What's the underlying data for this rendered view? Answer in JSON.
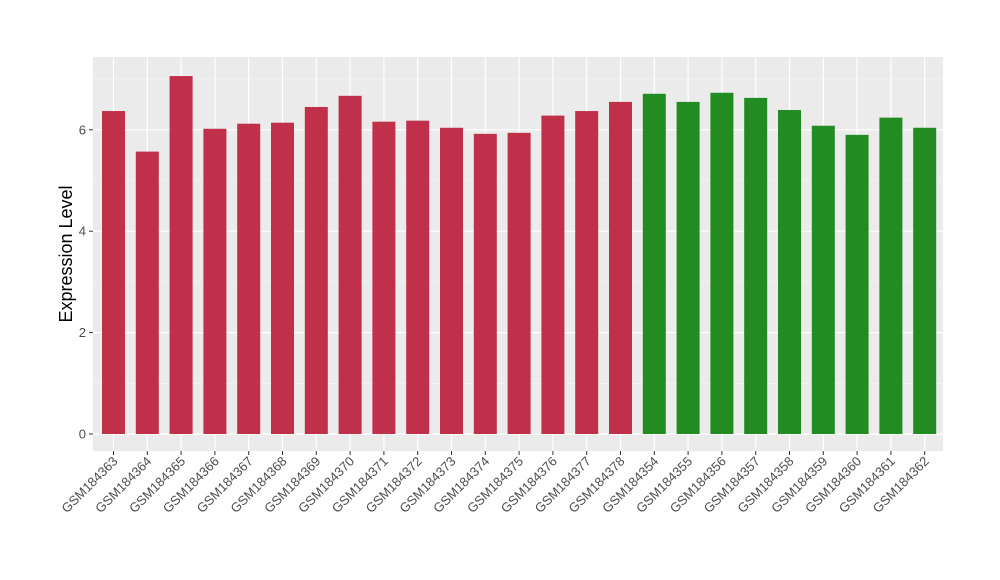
{
  "chart_data": {
    "type": "bar",
    "title": "",
    "xlabel": "",
    "ylabel": "Expression Level",
    "ylim": [
      0,
      7.4
    ],
    "yticks": [
      0,
      2,
      4,
      6
    ],
    "grid": true,
    "background": "#ebebeb",
    "categories": [
      "GSM184363",
      "GSM184364",
      "GSM184365",
      "GSM184366",
      "GSM184367",
      "GSM184368",
      "GSM184369",
      "GSM184370",
      "GSM184371",
      "GSM184372",
      "GSM184373",
      "GSM184374",
      "GSM184375",
      "GSM184376",
      "GSM184377",
      "GSM184378",
      "GSM184354",
      "GSM184355",
      "GSM184356",
      "GSM184357",
      "GSM184358",
      "GSM184359",
      "GSM184360",
      "GSM184361",
      "GSM184362"
    ],
    "values": [
      6.37,
      5.57,
      7.06,
      6.02,
      6.12,
      6.14,
      6.45,
      6.67,
      6.16,
      6.18,
      6.04,
      5.92,
      5.94,
      6.28,
      6.37,
      6.55,
      6.71,
      6.55,
      6.73,
      6.63,
      6.39,
      6.08,
      5.9,
      6.24,
      6.04
    ],
    "groups": [
      "red",
      "red",
      "red",
      "red",
      "red",
      "red",
      "red",
      "red",
      "red",
      "red",
      "red",
      "red",
      "red",
      "red",
      "red",
      "red",
      "green",
      "green",
      "green",
      "green",
      "green",
      "green",
      "green",
      "green",
      "green"
    ],
    "colors": {
      "red": "#c1304a",
      "green": "#228b22"
    }
  }
}
